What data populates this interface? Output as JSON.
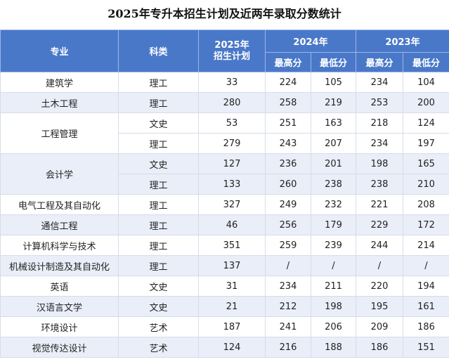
{
  "title": "2025年专升本招生计划及近两年录取分数统计",
  "headers": {
    "major": "专业",
    "category": "科类",
    "plan2025": "2025年\n招生计划",
    "y2024": "2024年",
    "y2023": "2023年",
    "max": "最高分",
    "min": "最低分"
  },
  "groups": [
    {
      "major": "建筑学",
      "rows": [
        {
          "category": "理工",
          "plan": "33",
          "max2024": "224",
          "min2024": "105",
          "max2023": "234",
          "min2023": "104"
        }
      ]
    },
    {
      "major": "土木工程",
      "rows": [
        {
          "category": "理工",
          "plan": "280",
          "max2024": "258",
          "min2024": "219",
          "max2023": "253",
          "min2023": "200"
        }
      ]
    },
    {
      "major": "工程管理",
      "rows": [
        {
          "category": "文史",
          "plan": "53",
          "max2024": "251",
          "min2024": "163",
          "max2023": "218",
          "min2023": "124"
        },
        {
          "category": "理工",
          "plan": "279",
          "max2024": "243",
          "min2024": "207",
          "max2023": "234",
          "min2023": "197"
        }
      ]
    },
    {
      "major": "会计学",
      "rows": [
        {
          "category": "文史",
          "plan": "127",
          "max2024": "236",
          "min2024": "201",
          "max2023": "198",
          "min2023": "165"
        },
        {
          "category": "理工",
          "plan": "133",
          "max2024": "260",
          "min2024": "238",
          "max2023": "238",
          "min2023": "210"
        }
      ]
    },
    {
      "major": "电气工程及其自动化",
      "rows": [
        {
          "category": "理工",
          "plan": "327",
          "max2024": "249",
          "min2024": "232",
          "max2023": "221",
          "min2023": "208"
        }
      ]
    },
    {
      "major": "通信工程",
      "rows": [
        {
          "category": "理工",
          "plan": "46",
          "max2024": "256",
          "min2024": "179",
          "max2023": "229",
          "min2023": "172"
        }
      ]
    },
    {
      "major": "计算机科学与技术",
      "rows": [
        {
          "category": "理工",
          "plan": "351",
          "max2024": "259",
          "min2024": "239",
          "max2023": "244",
          "min2023": "214"
        }
      ]
    },
    {
      "major": "机械设计制造及其自动化",
      "rows": [
        {
          "category": "理工",
          "plan": "137",
          "max2024": "/",
          "min2024": "/",
          "max2023": "/",
          "min2023": "/"
        }
      ]
    },
    {
      "major": "英语",
      "rows": [
        {
          "category": "文史",
          "plan": "31",
          "max2024": "234",
          "min2024": "211",
          "max2023": "220",
          "min2023": "194"
        }
      ]
    },
    {
      "major": "汉语言文学",
      "rows": [
        {
          "category": "文史",
          "plan": "21",
          "max2024": "212",
          "min2024": "198",
          "max2023": "195",
          "min2023": "161"
        }
      ]
    },
    {
      "major": "环境设计",
      "rows": [
        {
          "category": "艺术",
          "plan": "187",
          "max2024": "241",
          "min2024": "206",
          "max2023": "209",
          "min2023": "186"
        }
      ]
    },
    {
      "major": "视觉传达设计",
      "rows": [
        {
          "category": "艺术",
          "plan": "124",
          "max2024": "216",
          "min2024": "188",
          "max2023": "186",
          "min2023": "151"
        }
      ]
    }
  ]
}
